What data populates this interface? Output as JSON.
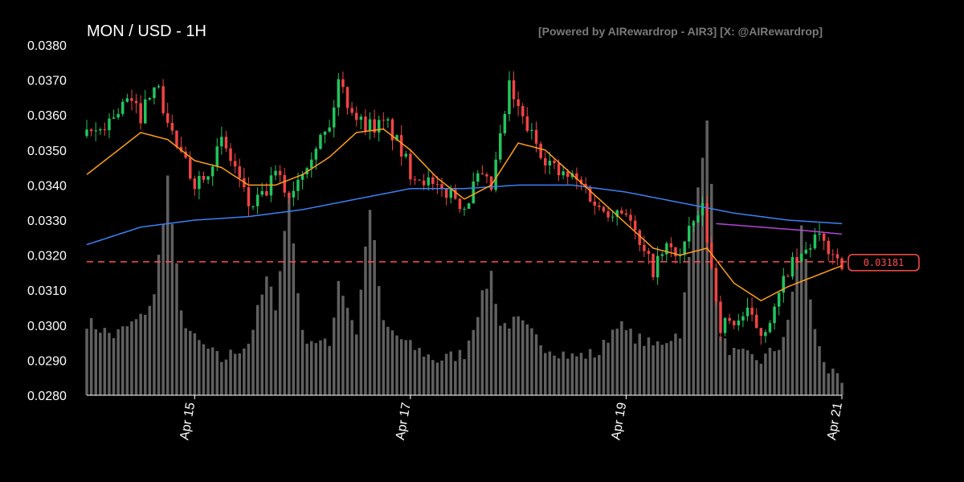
{
  "title": "MON / USD - 1H",
  "credit": "[Powered by AIRewardrop - AIR3] [X: @AIRewardrop]",
  "chart_data": {
    "type": "candlestick",
    "ylim": [
      0.028,
      0.038
    ],
    "y_ticks": [
      "0.0380",
      "0.0370",
      "0.0360",
      "0.0350",
      "0.0340",
      "0.0330",
      "0.0320",
      "0.0310",
      "0.0300",
      "0.0290",
      "0.0280"
    ],
    "x_ticks": [
      "Apr 15",
      "Apr 17",
      "Apr 19",
      "Apr 21"
    ],
    "x_tick_hours": [
      24,
      72,
      120,
      168
    ],
    "hours_total": 168,
    "current_price": 0.03181,
    "current_price_label": "0.03181",
    "colors": {
      "up": "#22c55e",
      "down": "#ef4444",
      "volume": "#808080",
      "ma_fast": "#ff9f1a",
      "ma_slow": "#3b82f6",
      "ma_extra": "#b545d6",
      "price_line": "#ff4d4d"
    },
    "close_keyframes": [
      [
        0,
        0.0354
      ],
      [
        3,
        0.0356
      ],
      [
        6,
        0.036
      ],
      [
        9,
        0.0364
      ],
      [
        12,
        0.036
      ],
      [
        15,
        0.037
      ],
      [
        18,
        0.0358
      ],
      [
        21,
        0.0348
      ],
      [
        24,
        0.0341
      ],
      [
        27,
        0.0345
      ],
      [
        30,
        0.0352
      ],
      [
        33,
        0.0345
      ],
      [
        36,
        0.0334
      ],
      [
        39,
        0.0336
      ],
      [
        42,
        0.0343
      ],
      [
        45,
        0.0337
      ],
      [
        48,
        0.0345
      ],
      [
        51,
        0.0352
      ],
      [
        54,
        0.0356
      ],
      [
        56,
        0.037
      ],
      [
        58,
        0.0364
      ],
      [
        61,
        0.0358
      ],
      [
        64,
        0.0357
      ],
      [
        67,
        0.0357
      ],
      [
        69,
        0.0352
      ],
      [
        72,
        0.0344
      ],
      [
        75,
        0.0342
      ],
      [
        78,
        0.0338
      ],
      [
        81,
        0.0338
      ],
      [
        84,
        0.0334
      ],
      [
        87,
        0.0342
      ],
      [
        90,
        0.0339
      ],
      [
        92,
        0.0353
      ],
      [
        94,
        0.0368
      ],
      [
        96,
        0.0361
      ],
      [
        99,
        0.0354
      ],
      [
        102,
        0.0348
      ],
      [
        105,
        0.0343
      ],
      [
        108,
        0.0342
      ],
      [
        111,
        0.0339
      ],
      [
        114,
        0.0333
      ],
      [
        117,
        0.0333
      ],
      [
        120,
        0.0333
      ],
      [
        123,
        0.0322
      ],
      [
        126,
        0.0316
      ],
      [
        129,
        0.0322
      ],
      [
        132,
        0.032
      ],
      [
        135,
        0.0329
      ],
      [
        137,
        0.0333
      ],
      [
        139,
        0.0316
      ],
      [
        141,
        0.03
      ],
      [
        144,
        0.0301
      ],
      [
        147,
        0.0303
      ],
      [
        150,
        0.0298
      ],
      [
        153,
        0.0304
      ],
      [
        156,
        0.0316
      ],
      [
        159,
        0.0319
      ],
      [
        162,
        0.0325
      ],
      [
        165,
        0.0322
      ],
      [
        168,
        0.0318
      ]
    ],
    "ma_fast_keyframes": [
      [
        0,
        0.0343
      ],
      [
        6,
        0.0349
      ],
      [
        12,
        0.0355
      ],
      [
        18,
        0.0353
      ],
      [
        24,
        0.0347
      ],
      [
        30,
        0.0345
      ],
      [
        36,
        0.034
      ],
      [
        42,
        0.034
      ],
      [
        48,
        0.0343
      ],
      [
        54,
        0.0348
      ],
      [
        60,
        0.0355
      ],
      [
        66,
        0.0356
      ],
      [
        72,
        0.035
      ],
      [
        78,
        0.0342
      ],
      [
        84,
        0.0336
      ],
      [
        90,
        0.034
      ],
      [
        96,
        0.0352
      ],
      [
        102,
        0.035
      ],
      [
        108,
        0.0343
      ],
      [
        114,
        0.0336
      ],
      [
        120,
        0.0329
      ],
      [
        126,
        0.0322
      ],
      [
        132,
        0.032
      ],
      [
        138,
        0.0322
      ],
      [
        144,
        0.0312
      ],
      [
        150,
        0.0307
      ],
      [
        156,
        0.0311
      ],
      [
        162,
        0.0314
      ],
      [
        168,
        0.0317
      ]
    ],
    "ma_slow_keyframes": [
      [
        0,
        0.0323
      ],
      [
        12,
        0.0328
      ],
      [
        24,
        0.033
      ],
      [
        36,
        0.0331
      ],
      [
        48,
        0.0333
      ],
      [
        60,
        0.0336
      ],
      [
        72,
        0.0339
      ],
      [
        84,
        0.0339
      ],
      [
        96,
        0.034
      ],
      [
        108,
        0.034
      ],
      [
        120,
        0.0338
      ],
      [
        132,
        0.0335
      ],
      [
        144,
        0.0332
      ],
      [
        156,
        0.033
      ],
      [
        168,
        0.0329
      ]
    ],
    "ma_extra_keyframes": [
      [
        140,
        0.0329
      ],
      [
        150,
        0.0328
      ],
      [
        160,
        0.0327
      ],
      [
        168,
        0.0326
      ]
    ],
    "volume_keyframes": [
      [
        0,
        0.0301
      ],
      [
        6,
        0.0297
      ],
      [
        12,
        0.0302
      ],
      [
        15,
        0.0308
      ],
      [
        18,
        0.0342
      ],
      [
        21,
        0.0303
      ],
      [
        24,
        0.0296
      ],
      [
        30,
        0.029
      ],
      [
        36,
        0.0295
      ],
      [
        40,
        0.0313
      ],
      [
        42,
        0.0306
      ],
      [
        45,
        0.0337
      ],
      [
        48,
        0.0297
      ],
      [
        54,
        0.0294
      ],
      [
        56,
        0.0313
      ],
      [
        60,
        0.0298
      ],
      [
        63,
        0.0334
      ],
      [
        66,
        0.03
      ],
      [
        72,
        0.0294
      ],
      [
        78,
        0.029
      ],
      [
        84,
        0.0292
      ],
      [
        88,
        0.0308
      ],
      [
        90,
        0.0315
      ],
      [
        92,
        0.03
      ],
      [
        96,
        0.0301
      ],
      [
        102,
        0.0294
      ],
      [
        108,
        0.0291
      ],
      [
        114,
        0.0292
      ],
      [
        118,
        0.0301
      ],
      [
        120,
        0.0298
      ],
      [
        126,
        0.0294
      ],
      [
        132,
        0.0298
      ],
      [
        138,
        0.036
      ],
      [
        141,
        0.0296
      ],
      [
        144,
        0.0292
      ],
      [
        150,
        0.029
      ],
      [
        154,
        0.0294
      ],
      [
        156,
        0.03
      ],
      [
        159,
        0.0328
      ],
      [
        162,
        0.0298
      ],
      [
        165,
        0.0287
      ],
      [
        168,
        0.0283
      ]
    ]
  }
}
